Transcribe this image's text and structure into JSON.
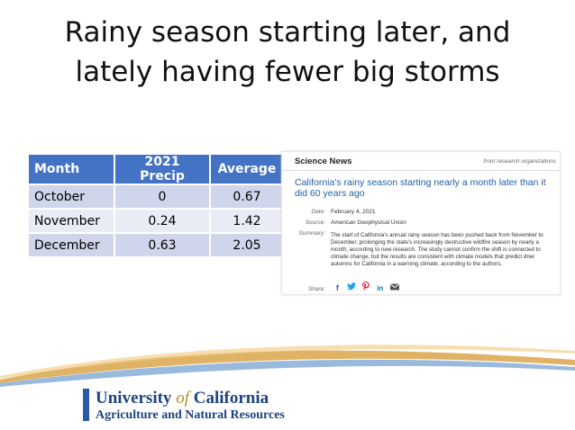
{
  "slide": {
    "title_line1": "Rainy season starting later, and",
    "title_line2": "lately having fewer big storms"
  },
  "table": {
    "headers": [
      "Month",
      "2021 Precip",
      "Average"
    ],
    "rows": [
      [
        "October",
        "0",
        "0.67"
      ],
      [
        "November",
        "0.24",
        "1.42"
      ],
      [
        "December",
        "0.63",
        "2.05"
      ]
    ]
  },
  "article": {
    "source": "Science News",
    "from": "from research organizations",
    "headline": "California's rainy season starting nearly a month later than it did 60 years ago",
    "date_label": "Date:",
    "date": "February 4, 2021",
    "source_label": "Source:",
    "source_value": "American Geophysical Union",
    "summary_label": "Summary:",
    "summary": "The start of California's annual rainy season has been pushed back from November to December, prolonging the state's increasingly destructive wildfire season by nearly a month, according to new research. The study cannot confirm the shift is connected to climate change, but the results are consistent with climate models that predict drier autumns for California in a warming climate, according to the authors.",
    "share_label": "Share:",
    "share_icons": [
      "facebook-icon",
      "twitter-icon",
      "pinterest-icon",
      "linkedin-icon",
      "email-icon"
    ],
    "colors": {
      "headline": "#2160a8",
      "facebook": "#3b5998",
      "twitter": "#1da1f2",
      "pinterest": "#e60023",
      "linkedin": "#0077b5",
      "email": "#555555"
    }
  },
  "logo": {
    "line1_a": "University ",
    "line1_of": "of",
    "line1_b": " California",
    "line2": "Agriculture and Natural Resources",
    "colors": {
      "blue": "#1b4480",
      "gold": "#c08a1e"
    }
  }
}
